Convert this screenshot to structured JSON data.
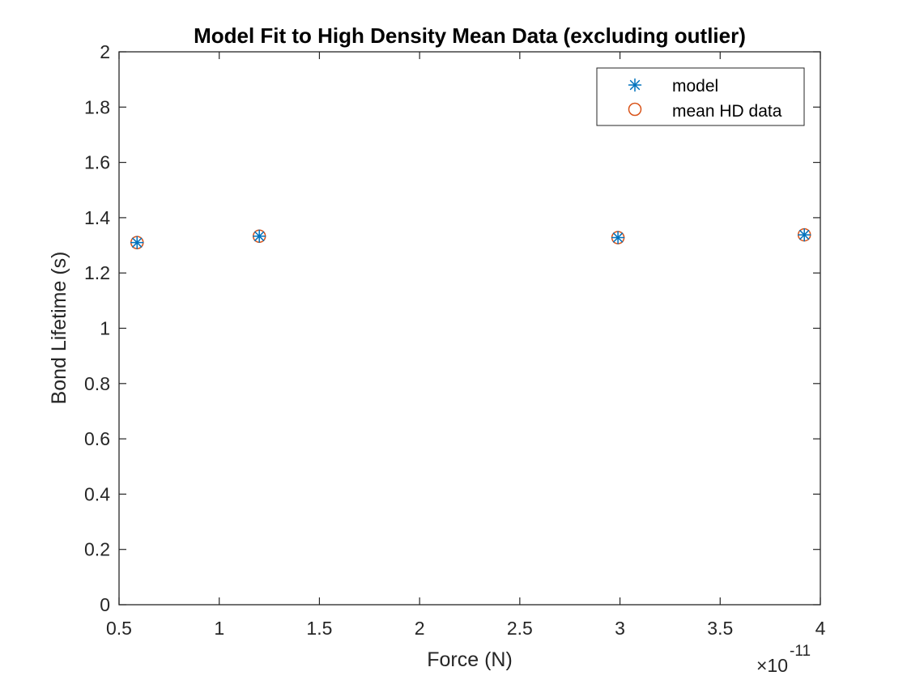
{
  "chart_data": {
    "type": "scatter",
    "title": "Model Fit to High Density Mean Data (excluding outlier)",
    "xlabel": "Force (N)",
    "ylabel": "Bond Lifetime (s)",
    "x_exponent_label": "×10",
    "x_exponent_power": "-11",
    "xlim": [
      0.5,
      4
    ],
    "ylim": [
      0,
      2
    ],
    "x_ticks": [
      0.5,
      1,
      1.5,
      2,
      2.5,
      3,
      3.5,
      4
    ],
    "x_tick_labels": [
      "0.5",
      "1",
      "1.5",
      "2",
      "2.5",
      "3",
      "3.5",
      "4"
    ],
    "y_ticks": [
      0,
      0.2,
      0.4,
      0.6,
      0.8,
      1,
      1.2,
      1.4,
      1.6,
      1.8,
      2
    ],
    "y_tick_labels": [
      "0",
      "0.2",
      "0.4",
      "0.6",
      "0.8",
      "1",
      "1.2",
      "1.4",
      "1.6",
      "1.8",
      "2"
    ],
    "grid": false,
    "legend_position": "top-right",
    "series": [
      {
        "name": "model",
        "marker": "asterisk",
        "color": "#0072BD",
        "x": [
          0.59,
          1.2,
          2.99,
          3.92
        ],
        "y": [
          1.31,
          1.333,
          1.328,
          1.338
        ]
      },
      {
        "name": "mean HD data",
        "marker": "circle",
        "color": "#D95319",
        "x": [
          0.59,
          1.2,
          2.99,
          3.92
        ],
        "y": [
          1.31,
          1.333,
          1.328,
          1.338
        ]
      }
    ]
  }
}
